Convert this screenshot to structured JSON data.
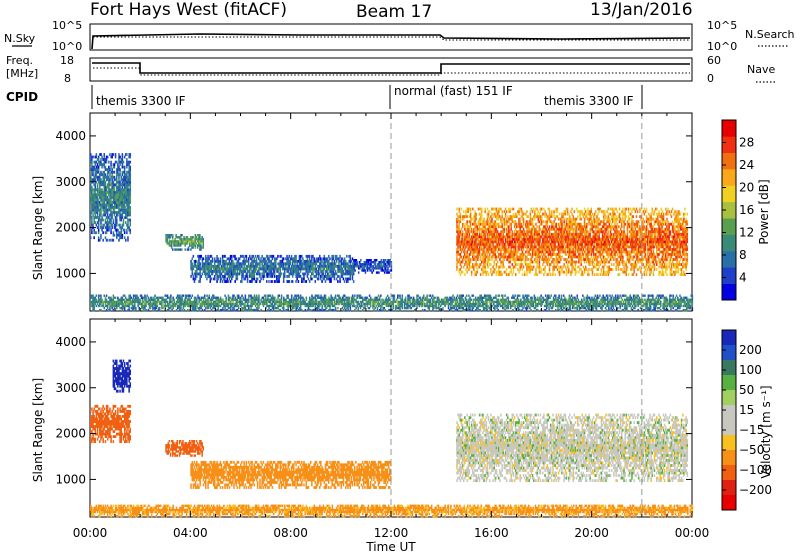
{
  "header": {
    "station": "Fort Hays West (fitACF)",
    "beam": "Beam 17",
    "date": "13/Jan/2016"
  },
  "top_panels": {
    "nsky_label": "N.Sky",
    "nsky_ticks": [
      "10^5",
      "10^0"
    ],
    "nsearch_label": "N.Search",
    "freq_label_1": "Freq.",
    "freq_label_2": "[MHz]",
    "freq_ticks": [
      "18",
      "8"
    ],
    "nave_label": "Nave",
    "nave_ticks": [
      "60",
      "0"
    ],
    "right_ticks_nsky": [
      "10^5",
      "10^0"
    ],
    "cpid_label": "CPID",
    "cpid_segments": [
      "themis 3300 IF",
      "normal (fast) 151 IF",
      "themis 3300 IF"
    ]
  },
  "chart_data": [
    {
      "type": "heatmap",
      "name": "power-panel",
      "xlabel": "Time UT",
      "ylabel": "Slant Range [km]",
      "x_ticks": [
        "00:00",
        "04:00",
        "08:00",
        "12:00",
        "16:00",
        "20:00",
        "00:00"
      ],
      "x_range_hours": [
        0,
        24
      ],
      "y_ticks": [
        1000,
        2000,
        3000,
        4000
      ],
      "y_range_km": [
        180,
        4500
      ],
      "colorbar": {
        "label": "Power [dB]",
        "ticks": [
          4,
          8,
          12,
          16,
          20,
          24,
          28
        ],
        "range": [
          0,
          32
        ],
        "colors": [
          "#0000e0",
          "#1e40c8",
          "#2a70a8",
          "#3a8a78",
          "#58a050",
          "#a8c040",
          "#f0d020",
          "#f8a818",
          "#f07010",
          "#f03010",
          "#e80000"
        ]
      },
      "echo_regions": [
        {
          "t_start": 0.0,
          "t_end": 1.6,
          "r_low": 1700,
          "r_high": 3600,
          "power": 10
        },
        {
          "t_start": 3.0,
          "t_end": 4.5,
          "r_low": 1500,
          "r_high": 1850,
          "power": 13
        },
        {
          "t_start": 4.0,
          "t_end": 10.5,
          "r_low": 800,
          "r_high": 1400,
          "power": 9
        },
        {
          "t_start": 10.5,
          "t_end": 12.0,
          "r_low": 1000,
          "r_high": 1300,
          "power": 7
        },
        {
          "t_start": 14.6,
          "t_end": 23.8,
          "r_low": 950,
          "r_high": 2400,
          "power": 26
        },
        {
          "t_start": 0.0,
          "t_end": 24.0,
          "r_low": 180,
          "r_high": 500,
          "power": 12
        }
      ],
      "dashed_times": [
        12.0,
        22.0
      ]
    },
    {
      "type": "heatmap",
      "name": "velocity-panel",
      "xlabel": "Time UT",
      "ylabel": "Slant Range [km]",
      "x_ticks": [
        "00:00",
        "04:00",
        "08:00",
        "12:00",
        "16:00",
        "20:00",
        "00:00"
      ],
      "x_range_hours": [
        0,
        24
      ],
      "y_ticks": [
        1000,
        2000,
        3000,
        4000
      ],
      "y_range_km": [
        180,
        4500
      ],
      "colorbar": {
        "label": "Velocity [m s⁻¹]",
        "ticks": [
          "200",
          "100",
          "50",
          "15",
          "−15",
          "−50",
          "−100",
          "−200"
        ],
        "colors": [
          "#1828b8",
          "#2050c8",
          "#3a7860",
          "#58b040",
          "#a0d060",
          "#c8c8c0",
          "#c8c8c0",
          "#f8c020",
          "#f89018",
          "#f06010",
          "#e02010",
          "#e80000"
        ]
      },
      "echo_regions": [
        {
          "t_start": 0.0,
          "t_end": 1.6,
          "r_low": 1800,
          "r_high": 2600,
          "velocity": -120
        },
        {
          "t_start": 0.9,
          "t_end": 1.6,
          "r_low": 2900,
          "r_high": 3600,
          "velocity": 200
        },
        {
          "t_start": 3.0,
          "t_end": 4.5,
          "r_low": 1500,
          "r_high": 1850,
          "velocity": -120
        },
        {
          "t_start": 4.0,
          "t_end": 12.0,
          "r_low": 800,
          "r_high": 1400,
          "velocity": -70
        },
        {
          "t_start": 14.6,
          "t_end": 23.8,
          "r_low": 950,
          "r_high": 2400,
          "velocity": 0
        },
        {
          "t_start": 0.0,
          "t_end": 24.0,
          "r_low": 180,
          "r_high": 450,
          "velocity": -60
        }
      ],
      "dashed_times": [
        12.0,
        22.0
      ]
    }
  ]
}
